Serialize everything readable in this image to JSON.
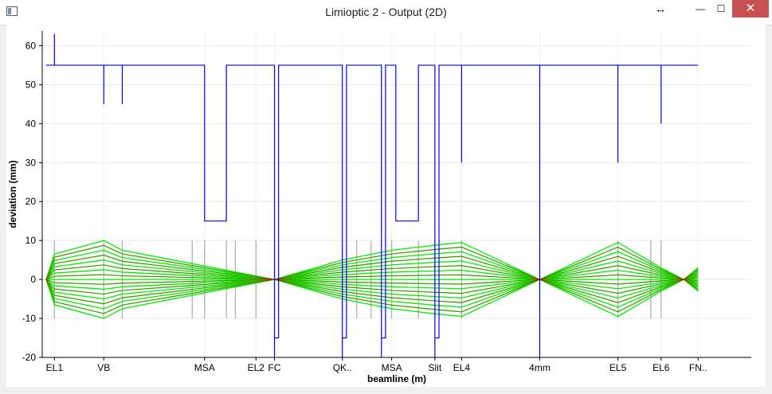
{
  "window": {
    "title": "Limioptic 2 - Output (2D)",
    "resize_glyph": "↔",
    "minimize_glyph": "—",
    "maximize_glyph": "☐",
    "close_glyph": "✕"
  },
  "chart_data": {
    "type": "line",
    "title": "",
    "xlabel": "beamline (m)",
    "ylabel": "deviation (mm)",
    "xlim": [
      0,
      16
    ],
    "ylim": [
      -20,
      65
    ],
    "yticks": [
      -20,
      -10,
      0,
      10,
      20,
      30,
      40,
      50,
      60
    ],
    "grid": true,
    "element_labels": [
      {
        "x": 0.2,
        "label": "EL1"
      },
      {
        "x": 1.4,
        "label": "VB"
      },
      {
        "x": 3.85,
        "label": "MSA"
      },
      {
        "x": 5.1,
        "label": "EL2"
      },
      {
        "x": 5.55,
        "label": "FC"
      },
      {
        "x": 7.2,
        "label": "QK.."
      },
      {
        "x": 8.4,
        "label": "MSA"
      },
      {
        "x": 9.45,
        "label": "Slit"
      },
      {
        "x": 10.1,
        "label": "EL4"
      },
      {
        "x": 12.0,
        "label": "4mm"
      },
      {
        "x": 13.9,
        "label": "EL5"
      },
      {
        "x": 14.95,
        "label": "EL6"
      },
      {
        "x": 15.85,
        "label": "FN.."
      }
    ],
    "aperture": {
      "name": "aperture",
      "color": "#0000ff",
      "x": [
        0,
        0.2,
        0.2,
        0.2,
        1.4,
        1.4,
        1.4,
        1.85,
        1.85,
        1.85,
        3.85,
        3.85,
        4.38,
        4.38,
        5.55,
        5.55,
        5.55,
        5.55,
        5.55,
        5.65,
        5.65,
        5.65,
        7.2,
        7.2,
        7.2,
        7.2,
        7.2,
        7.3,
        7.3,
        7.3,
        8.15,
        8.15,
        8.15,
        8.15,
        8.15,
        8.25,
        8.25,
        8.25,
        8.5,
        8.5,
        9.05,
        9.05,
        9.45,
        9.45,
        9.45,
        9.45,
        9.45,
        9.55,
        9.55,
        9.55,
        10.1,
        10.1,
        10.1,
        12.0,
        12.0,
        12.0,
        12.0,
        12.0,
        12.0,
        12.0,
        12.0,
        13.9,
        13.9,
        13.9,
        14.95,
        14.95,
        14.95,
        15.85
      ],
      "y": [
        55,
        55,
        63,
        55,
        55,
        45,
        55,
        55,
        45,
        55,
        55,
        15,
        15,
        55,
        55,
        -20,
        -15,
        15,
        -15,
        -15,
        15,
        55,
        55,
        -20,
        -15,
        15,
        -15,
        -15,
        15,
        55,
        55,
        -20,
        -15,
        15,
        -15,
        -15,
        15,
        55,
        55,
        15,
        15,
        55,
        55,
        -20,
        -15,
        15,
        -15,
        -15,
        15,
        55,
        55,
        30,
        55,
        55,
        -20,
        -2,
        2,
        -2,
        2,
        -2,
        55,
        55,
        30,
        55,
        55,
        40,
        55,
        55
      ]
    },
    "envelope_rays": {
      "name": "rays",
      "color": "#00ee00",
      "x": [
        0,
        0.2,
        1.4,
        1.85,
        5.55,
        7.2,
        8.4,
        9.45,
        10.1,
        12.0,
        13.9,
        14.95,
        15.5,
        15.85
      ],
      "y_outer": [
        0,
        6.5,
        10,
        7.5,
        0,
        5,
        7.5,
        8.8,
        9.5,
        0,
        9.5,
        3,
        0,
        3
      ]
    },
    "reference_rays_color": "#cc0000",
    "element_markers": {
      "color": "#aaaaaa",
      "x": [
        0.2,
        1.4,
        1.85,
        3.55,
        3.85,
        4.38,
        4.6,
        5.1,
        5.55,
        7.2,
        7.55,
        7.9,
        8.4,
        9.05,
        9.45,
        10.1,
        13.9,
        14.7,
        14.95
      ],
      "y_range": [
        -10,
        10
      ]
    }
  }
}
